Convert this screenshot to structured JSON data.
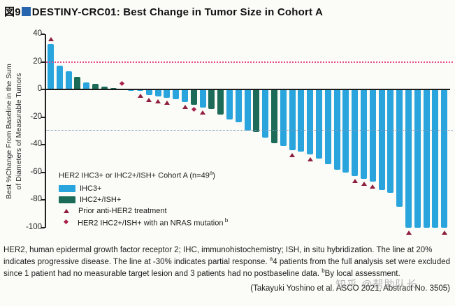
{
  "header": {
    "figure_label": "図9"
  },
  "colors": {
    "ihc3": "#29a4dc",
    "ihc2ish": "#1b6b58",
    "prior_marker": "#8e1f3c",
    "nras_marker": "#a8224e",
    "pd_line": "#e84a8a",
    "pr_line": "#7e9ab8",
    "title_square": "#2766ae"
  },
  "chart_data": {
    "type": "bar",
    "title": "DESTINY-CRC01: Best Change in Tumor Size in Cohort A",
    "ylabel_line1": "Best %Change From Baseline in the Sum",
    "ylabel_line2": "of Diameters of Measurable Tumors",
    "xlabel": "",
    "ylim": [
      -100,
      40
    ],
    "yticks": [
      40,
      20,
      0,
      -20,
      -40,
      -60,
      -80,
      -100
    ],
    "grid": false,
    "legend_position": "inside-lower-left",
    "reference_lines": [
      {
        "y": 20,
        "style": "dotted-pink",
        "meaning": "progressive disease"
      },
      {
        "y": -30,
        "style": "dotted-blue",
        "meaning": "partial response"
      }
    ],
    "groups": [
      {
        "id": "ihc3",
        "label": "IHC3+"
      },
      {
        "id": "ihc2ish",
        "label": "IHC2+/ISH+"
      }
    ],
    "bars": [
      {
        "value": 33,
        "group": "ihc3",
        "marker": "prior"
      },
      {
        "value": 17,
        "group": "ihc3",
        "marker": null
      },
      {
        "value": 13,
        "group": "ihc3",
        "marker": null
      },
      {
        "value": 9,
        "group": "ihc2ish",
        "marker": null
      },
      {
        "value": 5,
        "group": "ihc3",
        "marker": null
      },
      {
        "value": 4,
        "group": "ihc2ish",
        "marker": null
      },
      {
        "value": 2,
        "group": "ihc2ish",
        "marker": null
      },
      {
        "value": 1,
        "group": "ihc2ish",
        "marker": null
      },
      {
        "value": 0.5,
        "group": "ihc2ish",
        "marker": "nras"
      },
      {
        "value": -0.5,
        "group": "ihc3",
        "marker": null
      },
      {
        "value": -1,
        "group": "ihc3",
        "marker": "prior"
      },
      {
        "value": -4,
        "group": "ihc3",
        "marker": "prior"
      },
      {
        "value": -5,
        "group": "ihc3",
        "marker": "prior"
      },
      {
        "value": -6,
        "group": "ihc3",
        "marker": "prior"
      },
      {
        "value": -7,
        "group": "ihc3",
        "marker": null
      },
      {
        "value": -9,
        "group": "ihc3",
        "marker": "prior"
      },
      {
        "value": -11,
        "group": "ihc2ish",
        "marker": "nras"
      },
      {
        "value": -13,
        "group": "ihc3",
        "marker": "prior"
      },
      {
        "value": -14,
        "group": "ihc2ish",
        "marker": null
      },
      {
        "value": -18,
        "group": "ihc2ish",
        "marker": null
      },
      {
        "value": -22,
        "group": "ihc3",
        "marker": null
      },
      {
        "value": -24,
        "group": "ihc3",
        "marker": null
      },
      {
        "value": -30,
        "group": "ihc3",
        "marker": null
      },
      {
        "value": -31,
        "group": "ihc2ish",
        "marker": null
      },
      {
        "value": -35,
        "group": "ihc3",
        "marker": null
      },
      {
        "value": -39,
        "group": "ihc2ish",
        "marker": null
      },
      {
        "value": -41,
        "group": "ihc3",
        "marker": null
      },
      {
        "value": -44,
        "group": "ihc3",
        "marker": "prior"
      },
      {
        "value": -45,
        "group": "ihc3",
        "marker": null
      },
      {
        "value": -47,
        "group": "ihc3",
        "marker": "prior"
      },
      {
        "value": -50,
        "group": "ihc3",
        "marker": null
      },
      {
        "value": -54,
        "group": "ihc3",
        "marker": null
      },
      {
        "value": -58,
        "group": "ihc3",
        "marker": null
      },
      {
        "value": -60,
        "group": "ihc3",
        "marker": null
      },
      {
        "value": -63,
        "group": "ihc3",
        "marker": "prior"
      },
      {
        "value": -65,
        "group": "ihc3",
        "marker": "prior"
      },
      {
        "value": -67,
        "group": "ihc3",
        "marker": "prior"
      },
      {
        "value": -73,
        "group": "ihc3",
        "marker": null
      },
      {
        "value": -75,
        "group": "ihc3",
        "marker": null
      },
      {
        "value": -85,
        "group": "ihc3",
        "marker": null
      },
      {
        "value": -100,
        "group": "ihc3",
        "marker": "prior"
      },
      {
        "value": -100,
        "group": "ihc3",
        "marker": null
      },
      {
        "value": -100,
        "group": "ihc3",
        "marker": null
      },
      {
        "value": -100,
        "group": "ihc3",
        "marker": null
      },
      {
        "value": -100,
        "group": "ihc3",
        "marker": "prior"
      }
    ]
  },
  "legend": {
    "header_pre": "HER2 IHC3+ or IHC2+/ISH+ Cohort A (n=49",
    "header_sup": "a",
    "header_post": ")",
    "ihc3_label": "IHC3+",
    "ihc2ish_label": "IHC2+/ISH+",
    "prior_label": "Prior anti-HER2 treatment",
    "nras_label": "HER2 IHC2+/ISH+ with an NRAS mutation",
    "nras_sup": "b"
  },
  "footnote": {
    "line1": "HER2, human epidermal growth factor receptor 2; IHC, immunohistochemistry; ISH, in situ hybridization. The line at 20% indicates progressive disease. The line at -30% indicates partial response. ",
    "sup_a": "a",
    "line2": "4 patients from the full analysis set were excluded since 1 patient had no measurable target lesion and 3 patients had no postbaseline data. ",
    "sup_b": "b",
    "line3": "By local assessment."
  },
  "citation": "(Takayuki Yoshino et al. ASCO 2021, Abstract No. 3505)",
  "watermark": "知乎 @帮助队长"
}
